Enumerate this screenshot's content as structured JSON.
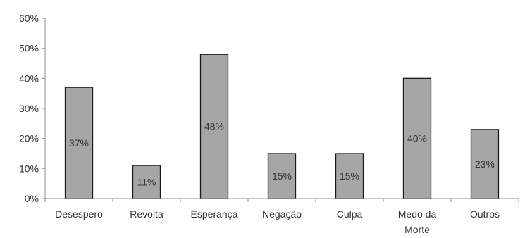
{
  "chart_data": {
    "type": "bar",
    "categories": [
      "Desespero",
      "Revolta",
      "Esperança",
      "Negação",
      "Culpa",
      "Medo da Morte",
      "Outros"
    ],
    "category_lines": [
      [
        "Desespero"
      ],
      [
        "Revolta"
      ],
      [
        "Esperança"
      ],
      [
        "Negação"
      ],
      [
        "Culpa"
      ],
      [
        "Medo da",
        "Morte"
      ],
      [
        "Outros"
      ]
    ],
    "values": [
      37,
      11,
      48,
      15,
      15,
      40,
      23
    ],
    "data_labels": [
      "37%",
      "11%",
      "48%",
      "15%",
      "15%",
      "40%",
      "23%"
    ],
    "yticks": [
      "0%",
      "10%",
      "20%",
      "30%",
      "40%",
      "50%",
      "60%"
    ],
    "ylim": [
      0,
      60
    ],
    "grid": false,
    "legend": "none",
    "colors": {
      "bar_fill": "#a6a6a6",
      "bar_stroke": "#1a1a1a",
      "axis": "#8c8c8c",
      "text": "#333333"
    }
  }
}
